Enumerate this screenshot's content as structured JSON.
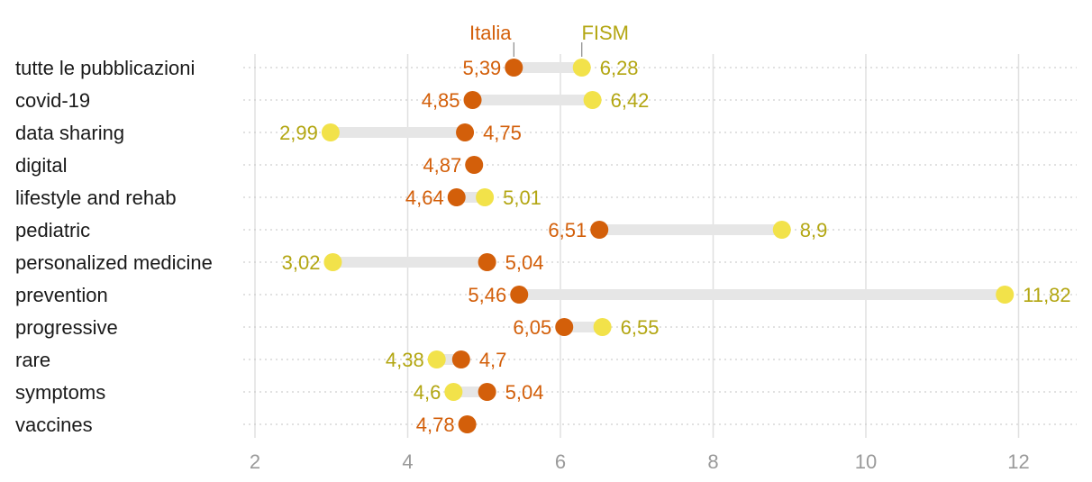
{
  "chart_data": {
    "type": "dumbbell",
    "x_range": [
      2,
      12
    ],
    "x_ticks": [
      "2",
      "4",
      "6",
      "8",
      "10",
      "12"
    ],
    "series": [
      {
        "name": "Italia",
        "color": "#d35f0a"
      },
      {
        "name": "FISM",
        "color": "#f2e24a",
        "label_color": "#b3a612"
      }
    ],
    "categories": [
      "tutte le pubblicazioni",
      "covid-19",
      "data sharing",
      "digital",
      "lifestyle and rehab",
      "pediatric",
      "personalized medicine",
      "prevention",
      "progressive",
      "rare",
      "symptoms",
      "vaccines"
    ],
    "italia": [
      5.39,
      4.85,
      4.75,
      4.87,
      4.64,
      6.51,
      5.04,
      5.46,
      6.05,
      4.7,
      5.04,
      4.78
    ],
    "italia_labels": [
      "5,39",
      "4,85",
      "4,75",
      "4,87",
      "4,64",
      "6,51",
      "5,04",
      "5,46",
      "6,05",
      "4,7",
      "5,04",
      "4,78"
    ],
    "fism": [
      6.28,
      6.42,
      2.99,
      null,
      5.01,
      8.9,
      3.02,
      11.82,
      6.55,
      4.38,
      4.6,
      null
    ],
    "fism_labels": [
      "6,28",
      "6,42",
      "2,99",
      null,
      "5,01",
      "8,9",
      "3,02",
      "11,82",
      "6,55",
      "4,38",
      "4,6",
      null
    ],
    "legend_label_row": 0,
    "grid": true
  }
}
